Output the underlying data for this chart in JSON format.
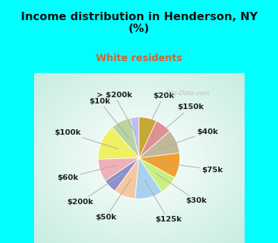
{
  "title": "Income distribution in Henderson, NY\n(%)",
  "subtitle": "White residents",
  "title_color": "#111111",
  "subtitle_color": "#cc6633",
  "bg_cyan": "#00ffff",
  "watermark": "City-Data.com",
  "labels": [
    "> $200k",
    "$10k",
    "$100k",
    "$60k",
    "$200k",
    "$50k",
    "$125k",
    "$30k",
    "$75k",
    "$40k",
    "$150k",
    "$20k"
  ],
  "values": [
    3.5,
    8.0,
    14.0,
    9.0,
    5.5,
    8.5,
    11.0,
    7.5,
    10.0,
    9.5,
    6.5,
    7.0
  ],
  "colors": [
    "#c0c0e8",
    "#b8d4a0",
    "#f0f060",
    "#f0b0b8",
    "#9090cc",
    "#f5c8a0",
    "#aad0f0",
    "#c8f080",
    "#f0a030",
    "#c0b898",
    "#e09090",
    "#c8a830"
  ],
  "label_fontsize": 8.0,
  "startangle": 90,
  "title_fontsize": 11.5,
  "subtitle_fontsize": 10
}
